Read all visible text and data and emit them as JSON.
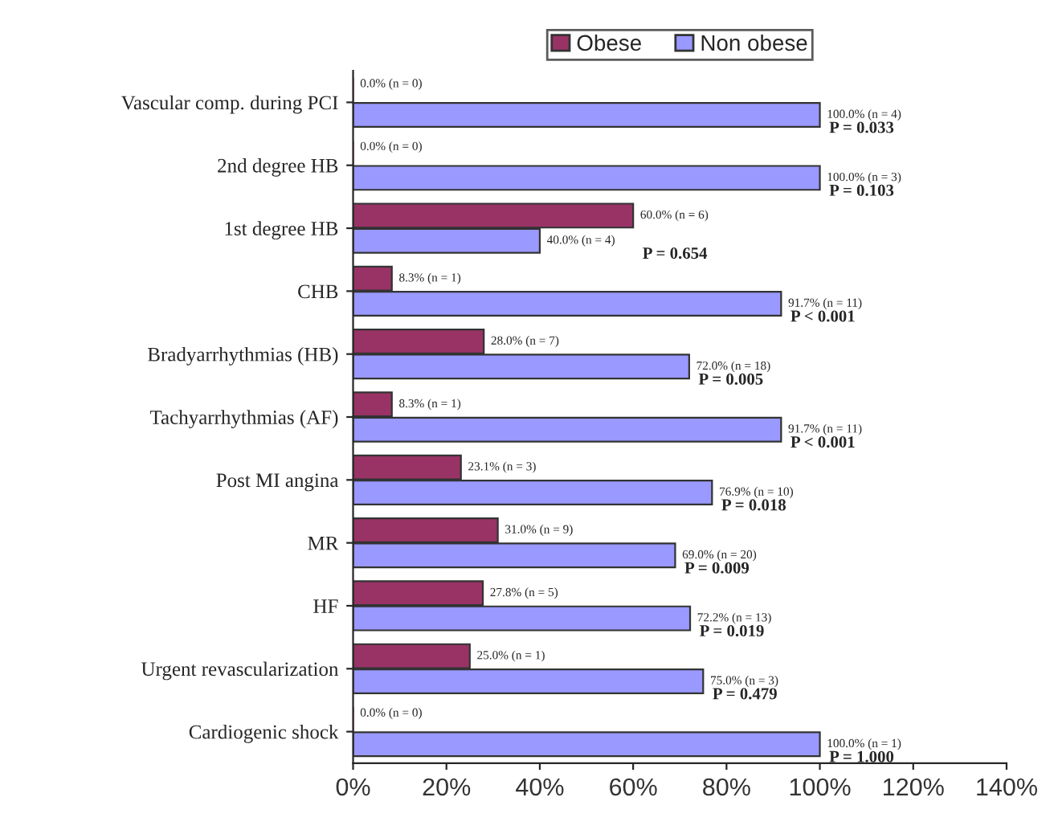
{
  "chart_data": {
    "type": "bar",
    "orientation": "horizontal",
    "categories": [
      "Vascular comp. during PCI",
      "2nd degree HB",
      "1st degree HB",
      "CHB",
      "Bradyarrhythmias (HB)",
      "Tachyarrhythmias (AF)",
      "Post MI angina",
      "MR",
      "HF",
      "Urgent revascularization",
      "Cardiogenic shock"
    ],
    "series": [
      {
        "name": "Obese",
        "color": "#993366",
        "values": [
          0.0,
          0.0,
          60.0,
          8.3,
          28.0,
          8.3,
          23.1,
          31.0,
          27.8,
          25.0,
          0.0
        ],
        "value_labels": [
          "0.0% (n = 0)",
          "0.0% (n = 0)",
          "60.0% (n = 6)",
          "8.3% (n = 1)",
          "28.0% (n = 7)",
          "8.3% (n = 1)",
          "23.1% (n = 3)",
          "31.0% (n = 9)",
          "27.8% (n = 5)",
          "25.0% (n = 1)",
          "0.0% (n = 0)"
        ]
      },
      {
        "name": "Non obese",
        "color": "#9999ff",
        "values": [
          100.0,
          100.0,
          40.0,
          91.7,
          72.0,
          91.7,
          76.9,
          69.0,
          72.2,
          75.0,
          100.0
        ],
        "value_labels": [
          "100.0% (n = 4)",
          "100.0% (n = 3)",
          "40.0% (n = 4)",
          "91.7% (n = 11)",
          "72.0% (n = 18)",
          "91.7% (n = 11)",
          "76.9% (n = 10)",
          "69.0% (n = 20)",
          "72.2% (n = 13)",
          "75.0% (n = 3)",
          "100.0% (n = 1)"
        ]
      }
    ],
    "xlim": [
      0,
      140
    ],
    "xticks": [
      {
        "value": 0,
        "label": "0%"
      },
      {
        "value": 20,
        "label": "20%"
      },
      {
        "value": 40,
        "label": "40%"
      },
      {
        "value": 60,
        "label": "60%"
      },
      {
        "value": 80,
        "label": "80%"
      },
      {
        "value": 100,
        "label": "100%"
      },
      {
        "value": 120,
        "label": "120%"
      },
      {
        "value": 140,
        "label": "140%"
      }
    ],
    "annotations": [
      {
        "text": "P = 0.033",
        "x": 100.0,
        "y": "Vascular comp. during PCI"
      },
      {
        "text": "P = 0.103",
        "x": 100.0,
        "y": "2nd degree HB"
      },
      {
        "text": "P = 0.654",
        "x": 60.0,
        "y": "1st degree HB"
      },
      {
        "text": "P < 0.001",
        "x": 91.7,
        "y": "CHB"
      },
      {
        "text": "P = 0.005",
        "x": 72.0,
        "y": "Bradyarrhythmias (HB)"
      },
      {
        "text": "P < 0.001",
        "x": 91.7,
        "y": "Tachyarrhythmias (AF)"
      },
      {
        "text": "P = 0.018",
        "x": 76.9,
        "y": "Post MI angina"
      },
      {
        "text": "P = 0.009",
        "x": 69.0,
        "y": "MR"
      },
      {
        "text": "P = 0.019",
        "x": 72.2,
        "y": "HF"
      },
      {
        "text": "P = 0.479",
        "x": 75.0,
        "y": "Urgent revascularization"
      },
      {
        "text": "P = 1.000",
        "x": 100.0,
        "y": "Cardiogenic shock"
      }
    ],
    "legend": "top",
    "grid": false
  }
}
